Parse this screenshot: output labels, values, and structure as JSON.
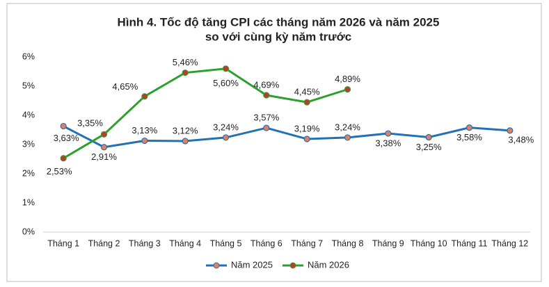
{
  "chart_data": {
    "type": "line",
    "title": "Hình 4. Tốc độ tăng CPI các tháng năm 2026 và năm 2025",
    "subtitle": "so với cùng kỳ năm trước",
    "categories": [
      "Tháng 1",
      "Tháng 2",
      "Tháng 3",
      "Tháng 4",
      "Tháng 5",
      "Tháng 6",
      "Tháng 7",
      "Tháng 8",
      "Tháng 9",
      "Tháng 10",
      "Tháng 11",
      "Tháng 12"
    ],
    "series": [
      {
        "name": "Năm 2025",
        "color": "#2270b5",
        "marker_color": "#e08060",
        "values": [
          3.63,
          2.91,
          3.13,
          3.12,
          3.24,
          3.57,
          3.19,
          3.24,
          3.38,
          3.25,
          3.58,
          3.48
        ],
        "value_labels": [
          "3,63%",
          "2,91%",
          "3,13%",
          "3,12%",
          "3,24%",
          "3,57%",
          "3,19%",
          "3,24%",
          "3,38%",
          "3,25%",
          "3,58%",
          "3,48%"
        ]
      },
      {
        "name": "Năm 2026",
        "color": "#2ca02c",
        "marker_color": "#c0392b",
        "values": [
          2.53,
          3.35,
          4.65,
          5.46,
          5.6,
          4.69,
          4.45,
          4.89,
          null,
          null,
          null,
          null
        ],
        "value_labels": [
          "2,53%",
          "3,35%",
          "4,65%",
          "5,46%",
          "5,60%",
          "4,69%",
          "4,45%",
          "4,89%",
          null,
          null,
          null,
          null
        ]
      }
    ],
    "ylim": [
      0,
      6
    ],
    "yticks": [
      {
        "value": 0,
        "label": "0%"
      },
      {
        "value": 1,
        "label": "1%"
      },
      {
        "value": 2,
        "label": "2%"
      },
      {
        "value": 3,
        "label": "3%"
      },
      {
        "value": 4,
        "label": "4%"
      },
      {
        "value": 5,
        "label": "5%"
      },
      {
        "value": 6,
        "label": "6%"
      }
    ],
    "grid": false,
    "legend": "bottom"
  }
}
